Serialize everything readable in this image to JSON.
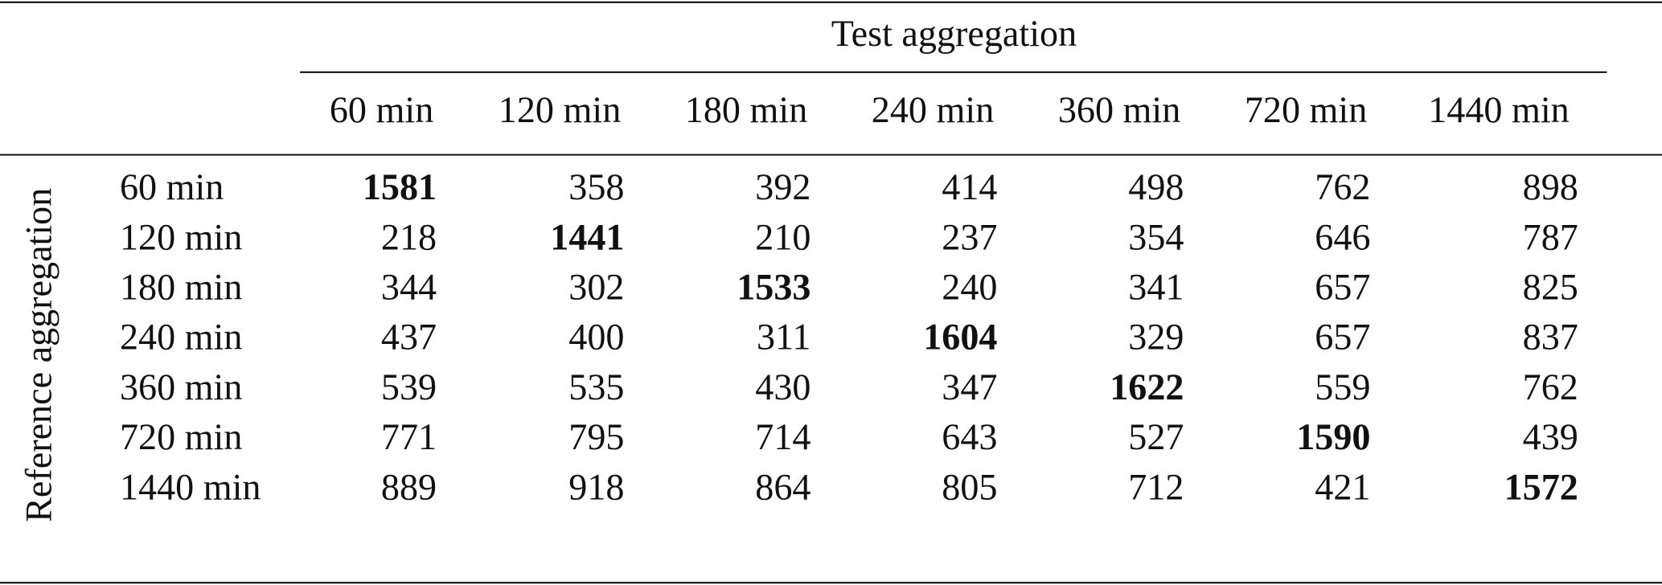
{
  "table": {
    "column_group_title": "Test aggregation",
    "row_group_title": "Reference aggregation",
    "columns": [
      "60 min",
      "120 min",
      "180 min",
      "240 min",
      "360 min",
      "720 min",
      "1440 min"
    ],
    "rows": [
      {
        "label": "60 min",
        "values": [
          1581,
          358,
          392,
          414,
          498,
          762,
          898
        ]
      },
      {
        "label": "120 min",
        "values": [
          218,
          1441,
          210,
          237,
          354,
          646,
          787
        ]
      },
      {
        "label": "180 min",
        "values": [
          344,
          302,
          1533,
          240,
          341,
          657,
          825
        ]
      },
      {
        "label": "240 min",
        "values": [
          437,
          400,
          311,
          1604,
          329,
          657,
          837
        ]
      },
      {
        "label": "360 min",
        "values": [
          539,
          535,
          430,
          347,
          1622,
          559,
          762
        ]
      },
      {
        "label": "720 min",
        "values": [
          771,
          795,
          714,
          643,
          527,
          1590,
          439
        ]
      },
      {
        "label": "1440 min",
        "values": [
          889,
          918,
          864,
          805,
          712,
          421,
          1572
        ]
      }
    ]
  }
}
